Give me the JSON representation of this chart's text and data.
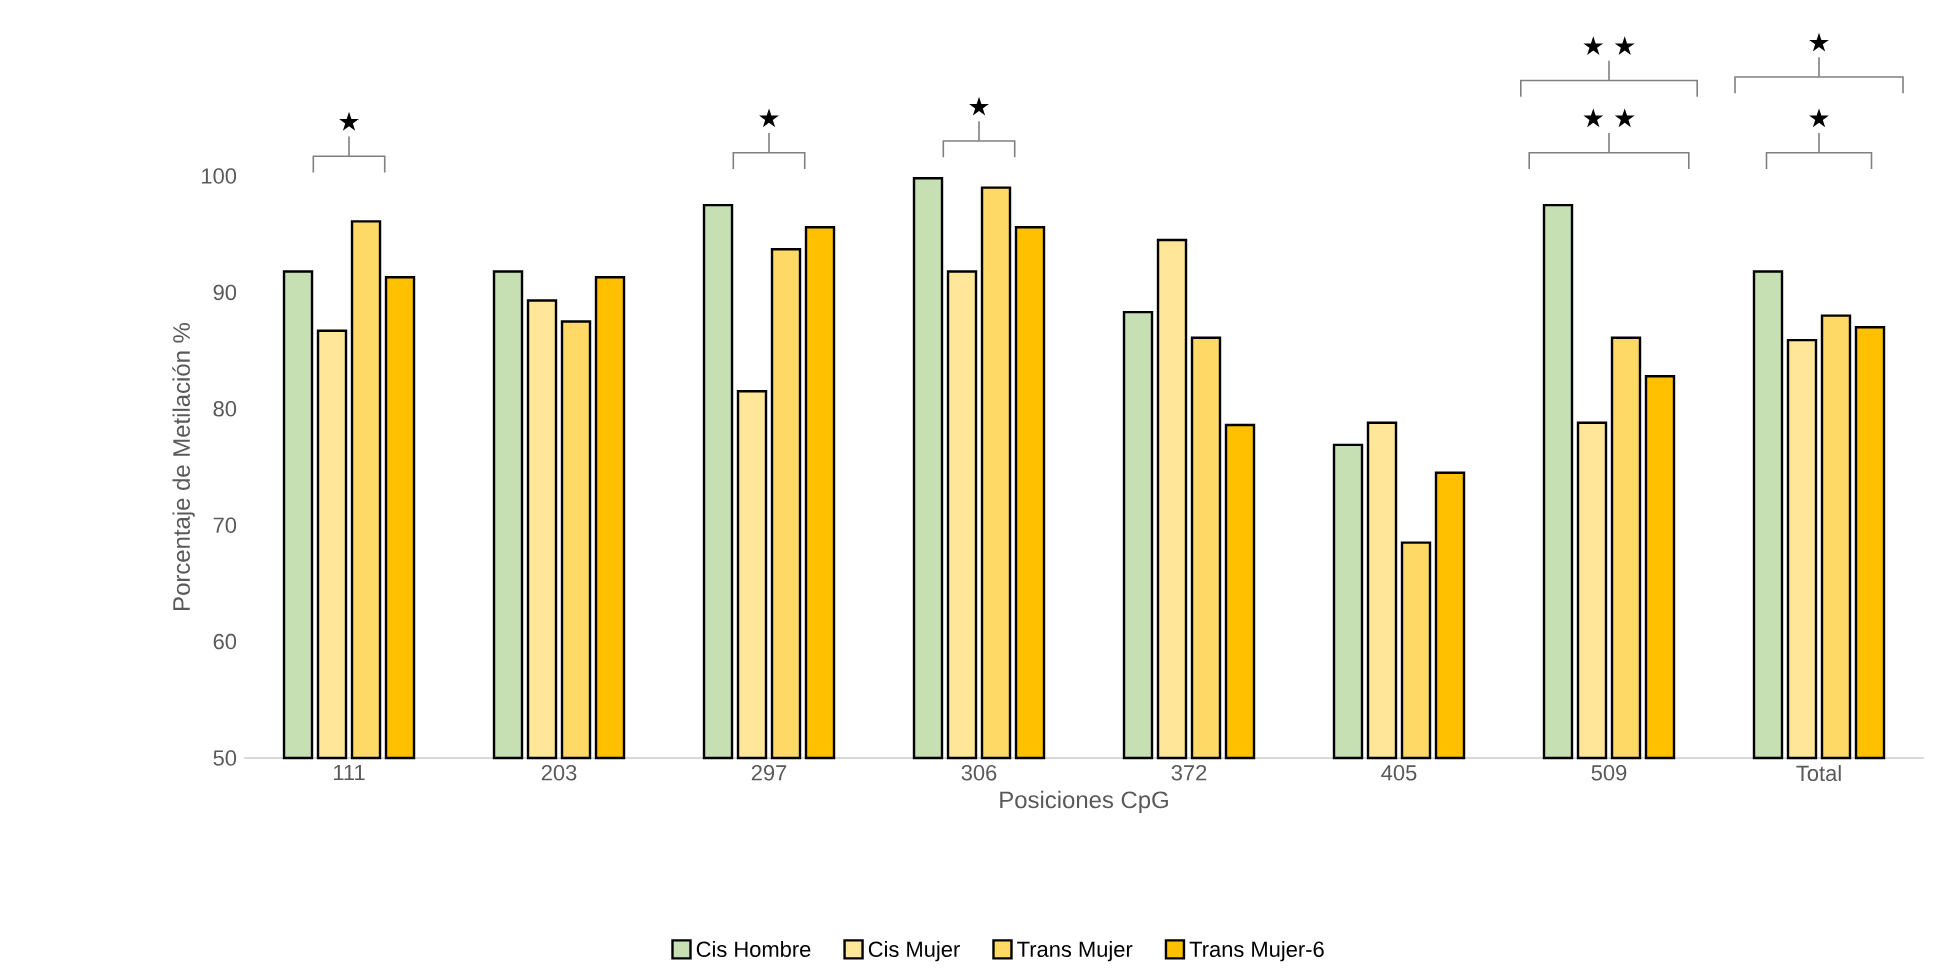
{
  "chart_data": {
    "type": "bar",
    "xlabel": "Posiciones CpG",
    "ylabel": "Porcentaje de Metilación %",
    "categories": [
      "111",
      "203",
      "297",
      "306",
      "372",
      "405",
      "509",
      "Total"
    ],
    "series": [
      {
        "name": "Cis Hombre",
        "color": "#c6e0b4",
        "values": [
          91.8,
          91.8,
          97.5,
          99.8,
          88.3,
          76.9,
          97.5,
          91.8
        ]
      },
      {
        "name": "Cis Mujer",
        "color": "#ffe699",
        "values": [
          86.7,
          89.3,
          81.5,
          91.8,
          94.5,
          78.8,
          78.8,
          85.9
        ]
      },
      {
        "name": "Trans Mujer",
        "color": "#ffd966",
        "values": [
          96.1,
          87.5,
          93.7,
          99.0,
          86.1,
          68.5,
          86.1,
          88.0
        ]
      },
      {
        "name": "Trans Mujer-6",
        "color": "#ffc000",
        "values": [
          91.3,
          91.3,
          95.6,
          95.6,
          78.6,
          74.5,
          82.8,
          87.0
        ]
      }
    ],
    "ylim": [
      50,
      100
    ],
    "yticks": [
      50,
      60,
      70,
      80,
      90,
      100
    ],
    "legend": "bottom",
    "annotations": [
      "★",
      "★",
      "★",
      "★ ★",
      "★ ★",
      "★",
      "★"
    ]
  }
}
